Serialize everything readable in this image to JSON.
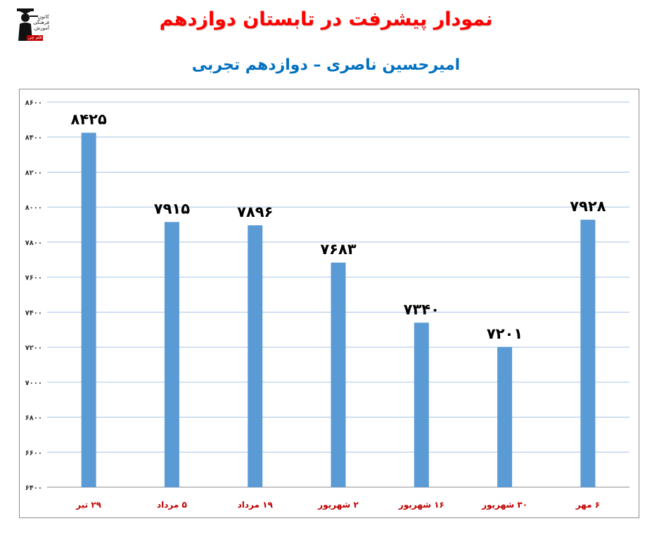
{
  "header": {
    "title": "نمودار پیشرفت در تابستان دوازدهم",
    "subtitle": "امیرحسین ناصری – دوازدهم تجربی",
    "title_color": "#ff0000",
    "subtitle_color": "#0070c0"
  },
  "logo": {
    "text": "کانون فرهنگی آموزش",
    "tag": "قلم چی"
  },
  "chart_data": {
    "type": "bar",
    "title": "",
    "xlabel": "",
    "ylabel": "",
    "categories": [
      "۲۹ تیر",
      "۵ مرداد",
      "۱۹ مرداد",
      "۲ شهریور",
      "۱۶ شهریور",
      "۳۰ شهریور",
      "۶ مهر"
    ],
    "values": [
      8425,
      7915,
      7896,
      7683,
      7340,
      7201,
      7928
    ],
    "value_labels": [
      "۸۴۲۵",
      "۷۹۱۵",
      "۷۸۹۶",
      "۷۶۸۳",
      "۷۳۴۰",
      "۷۲۰۱",
      "۷۹۲۸"
    ],
    "ylim": [
      6400,
      8600
    ],
    "yticks": [
      6400,
      6600,
      6800,
      7000,
      7200,
      7400,
      7600,
      7800,
      8000,
      8200,
      8400,
      8600
    ],
    "ytick_labels": [
      "۶۴۰۰",
      "۶۶۰۰",
      "۶۸۰۰",
      "۷۰۰۰",
      "۷۲۰۰",
      "۷۴۰۰",
      "۷۶۰۰",
      "۷۸۰۰",
      "۸۰۰۰",
      "۸۲۰۰",
      "۸۴۰۰",
      "۸۶۰۰"
    ],
    "grid": true,
    "colors": {
      "bar": "#5b9bd5",
      "gridline": "#a9c4e4",
      "category_label": "#c00000",
      "value_label": "#000000"
    }
  }
}
